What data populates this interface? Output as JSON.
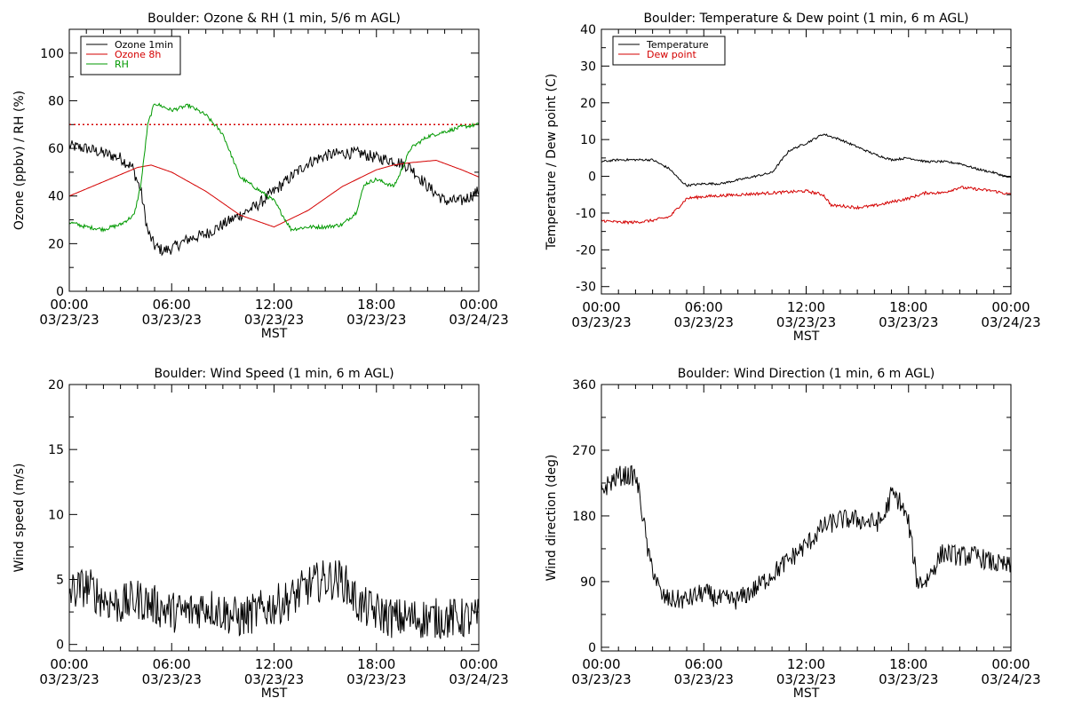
{
  "colors": {
    "black": "#000000",
    "red": "#d40000",
    "green": "#009900",
    "background": "#ffffff"
  },
  "x_axis": {
    "xlim": [
      0,
      24
    ],
    "ticks": [
      0,
      6,
      12,
      18,
      24
    ],
    "tick_labels_time": [
      "00:00",
      "06:00",
      "12:00",
      "18:00",
      "00:00"
    ],
    "tick_labels_date": [
      "03/23/23",
      "03/23/23",
      "03/23/23",
      "03/23/23",
      "03/24/23"
    ],
    "label": "MST"
  },
  "chart_data": [
    {
      "id": "ozone-rh",
      "type": "line",
      "title": "Boulder: Ozone & RH (1 min, 5/6 m AGL)",
      "ylabel": "Ozone (ppbv) / RH (%)",
      "xlabel": "MST",
      "xlim": [
        0,
        24
      ],
      "ylim": [
        0,
        110
      ],
      "yticks": [
        0,
        20,
        40,
        60,
        80,
        100
      ],
      "grid": false,
      "legend_position": "top-left",
      "reference_line": {
        "y": 70,
        "color": "#d40000",
        "style": "dotted"
      },
      "series": [
        {
          "name": "Ozone 1min",
          "color": "#000000",
          "noise": 2.5,
          "x": [
            0,
            1,
            2,
            3,
            3.7,
            4.2,
            4.6,
            5,
            5.5,
            6,
            7,
            8,
            9,
            10,
            11,
            12,
            13,
            14,
            15,
            16,
            17,
            18,
            19,
            20,
            20.5,
            21,
            22,
            23,
            24
          ],
          "y": [
            61,
            60,
            58,
            56,
            52,
            42,
            25,
            19,
            17,
            18,
            22,
            24,
            28,
            32,
            36,
            42,
            48,
            54,
            57,
            58,
            58,
            56,
            55,
            52,
            48,
            44,
            38,
            38,
            42
          ]
        },
        {
          "name": "Ozone 8h",
          "color": "#d40000",
          "noise": 0,
          "x": [
            0,
            1,
            2,
            3,
            4,
            4.8,
            6,
            8,
            10,
            12,
            14,
            16,
            18,
            19,
            20,
            21.5,
            23,
            24
          ],
          "y": [
            40,
            43,
            46,
            49,
            52,
            53,
            50,
            42,
            32,
            27,
            34,
            44,
            51,
            53,
            54,
            55,
            51,
            48
          ]
        },
        {
          "name": "RH",
          "color": "#009900",
          "noise": 0.8,
          "x": [
            0,
            1,
            2,
            3,
            3.8,
            4.2,
            4.6,
            5,
            6,
            7,
            8,
            9,
            10,
            11,
            12,
            13,
            14,
            15,
            16,
            16.8,
            17.3,
            18,
            19,
            19.3,
            20,
            21,
            22,
            23,
            24
          ],
          "y": [
            29,
            27,
            26,
            28,
            32,
            45,
            70,
            79,
            76,
            78,
            74,
            66,
            48,
            43,
            38,
            26,
            27,
            27,
            28,
            33,
            45,
            47,
            44,
            48,
            60,
            65,
            67,
            69,
            70
          ]
        }
      ]
    },
    {
      "id": "temp-dew",
      "type": "line",
      "title": "Boulder: Temperature & Dew point (1 min, 6 m AGL)",
      "ylabel": "Temperature / Dew point (C)",
      "xlabel": "MST",
      "xlim": [
        0,
        24
      ],
      "ylim": [
        -32,
        40
      ],
      "yticks": [
        -30,
        -20,
        -10,
        0,
        10,
        20,
        30,
        40
      ],
      "grid": false,
      "legend_position": "top-left",
      "series": [
        {
          "name": "Temperature",
          "color": "#000000",
          "noise": 0.3,
          "x": [
            0,
            1,
            2,
            3,
            4,
            4.6,
            5,
            6,
            7,
            8,
            9,
            10,
            11,
            12,
            13,
            14,
            15,
            16,
            17,
            18,
            19,
            20,
            21,
            22,
            23,
            24
          ],
          "y": [
            4,
            4.5,
            4.5,
            4.5,
            2,
            -1,
            -2.5,
            -2,
            -2,
            -1,
            0,
            1,
            7,
            9,
            11.5,
            10,
            8,
            6,
            4.5,
            5,
            4,
            4,
            3.5,
            2,
            1,
            -0.5
          ]
        },
        {
          "name": "Dew point",
          "color": "#d40000",
          "noise": 0.4,
          "x": [
            0,
            1,
            2,
            3,
            4,
            5,
            6,
            8,
            10,
            12,
            13,
            13.5,
            14,
            15,
            16,
            17,
            18,
            19,
            20,
            21,
            22,
            23,
            24
          ],
          "y": [
            -12,
            -12.5,
            -12.5,
            -12,
            -11,
            -6,
            -5.5,
            -5,
            -4.5,
            -4,
            -5,
            -8,
            -8,
            -8.5,
            -8,
            -7,
            -6,
            -4.5,
            -4.5,
            -3,
            -3.5,
            -4,
            -5
          ]
        }
      ]
    },
    {
      "id": "wind-speed",
      "type": "line",
      "title": "Boulder: Wind Speed (1 min, 6 m AGL)",
      "ylabel": "Wind speed (m/s)",
      "xlabel": "MST",
      "xlim": [
        0,
        24
      ],
      "ylim": [
        -0.5,
        20
      ],
      "yticks": [
        0,
        5,
        10,
        15,
        20
      ],
      "grid": false,
      "series": [
        {
          "name": "",
          "color": "#000000",
          "noise": 1.6,
          "x": [
            0,
            1,
            2,
            3,
            4,
            5,
            6,
            7,
            8,
            9,
            10,
            11,
            12,
            13,
            14,
            15,
            16,
            17,
            18,
            19,
            20,
            21,
            22,
            23,
            24
          ],
          "y": [
            4,
            4.5,
            3.5,
            3,
            3.5,
            3,
            2.5,
            2.5,
            3,
            2.5,
            2,
            2.5,
            3,
            3.5,
            4.5,
            5,
            5,
            3,
            2.5,
            2,
            2,
            2,
            2,
            2,
            2
          ]
        }
      ]
    },
    {
      "id": "wind-direction",
      "type": "line",
      "title": "Boulder: Wind Direction (1 min, 6 m AGL)",
      "ylabel": "Wind direction (deg)",
      "xlabel": "MST",
      "xlim": [
        0,
        24
      ],
      "ylim": [
        -5,
        360
      ],
      "yticks": [
        0,
        90,
        180,
        270,
        360
      ],
      "grid": false,
      "series": [
        {
          "name": "",
          "color": "#000000",
          "noise": 14,
          "x": [
            0,
            1,
            2,
            2.3,
            2.8,
            3,
            3.5,
            4,
            5,
            6,
            7,
            8,
            9,
            10,
            11,
            12,
            13,
            14,
            15,
            16,
            16.5,
            17,
            17.5,
            18,
            18.5,
            19,
            20,
            21,
            22,
            23,
            24
          ],
          "y": [
            215,
            235,
            235,
            200,
            120,
            110,
            70,
            65,
            65,
            75,
            65,
            65,
            80,
            100,
            120,
            140,
            165,
            175,
            175,
            170,
            175,
            210,
            200,
            170,
            90,
            90,
            130,
            125,
            125,
            115,
            110
          ]
        }
      ]
    }
  ]
}
